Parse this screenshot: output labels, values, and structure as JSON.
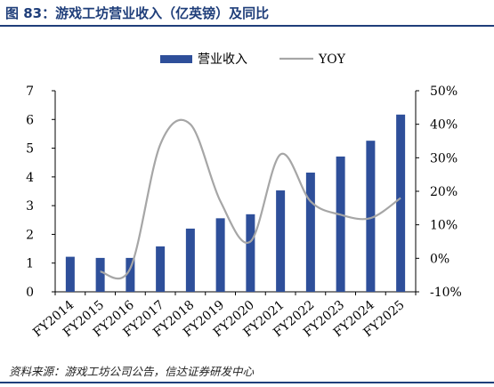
{
  "header": {
    "title": "图 83：游戏工坊营业收入（亿英镑）及同比"
  },
  "footer": {
    "source": "资料来源：游戏工坊公司公告，信达证券研发中心"
  },
  "colors": {
    "bar": "#2e4f9a",
    "line": "#a6a6a6",
    "title": "#1f3e7a",
    "axis": "#000000"
  },
  "chart_data": {
    "type": "bar",
    "title": "",
    "xlabel": "",
    "ylabel": "",
    "categories": [
      "FY2014",
      "FY2015",
      "FY2016",
      "FY2017",
      "FY2018",
      "FY2019",
      "FY2020",
      "FY2021",
      "FY2022",
      "FY2023",
      "FY2024",
      "FY2025"
    ],
    "series": [
      {
        "name": "营业收入",
        "type": "bar",
        "axis": "left",
        "values": [
          1.22,
          1.18,
          1.18,
          1.58,
          2.2,
          2.56,
          2.7,
          3.53,
          4.15,
          4.71,
          5.26,
          6.17
        ]
      },
      {
        "name": "YOY",
        "type": "line",
        "axis": "right",
        "values": [
          null,
          -4,
          -3,
          34,
          40,
          17,
          5,
          31,
          17,
          13,
          12,
          18
        ]
      }
    ],
    "ylim": [
      0,
      7
    ],
    "yticks": [
      "0",
      "1",
      "2",
      "3",
      "4",
      "5",
      "6",
      "7"
    ],
    "y2lim": [
      -10,
      50
    ],
    "y2ticks": [
      "-10%",
      "0%",
      "10%",
      "20%",
      "30%",
      "40%",
      "50%"
    ],
    "legend_position": "top",
    "grid": false
  }
}
